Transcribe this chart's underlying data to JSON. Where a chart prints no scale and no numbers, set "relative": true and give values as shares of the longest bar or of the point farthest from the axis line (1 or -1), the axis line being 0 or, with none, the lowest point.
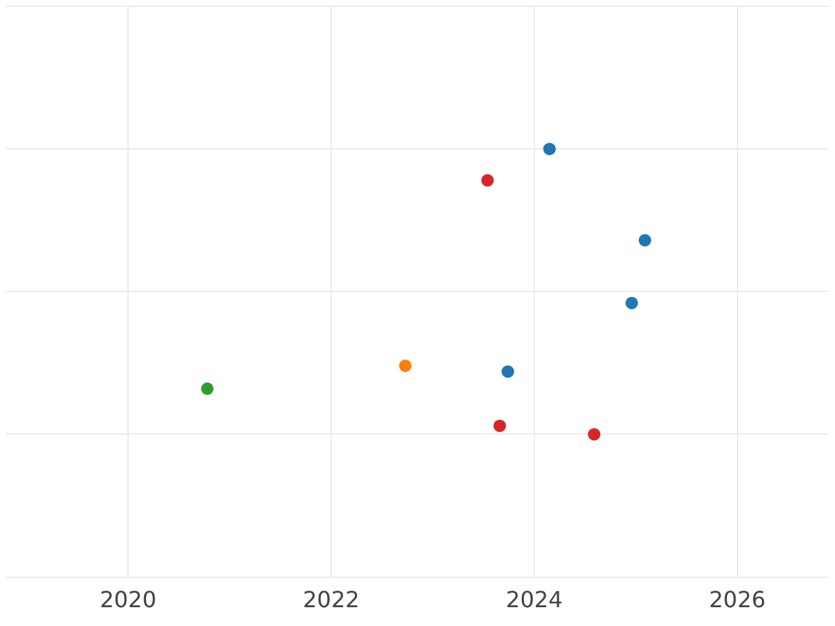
{
  "chart_data": {
    "type": "scatter",
    "relative": true,
    "grid": true,
    "marker": "circle",
    "xlim": [
      2018.8,
      2026.9
    ],
    "xticks": [
      2020,
      2022,
      2024,
      2026
    ],
    "series": [
      {
        "color": "#1f77b4",
        "x": [
          2024.15,
          2025.09,
          2024.96,
          2023.74
        ],
        "values": [
          1,
          0.68,
          0.46,
          0.22
        ]
      },
      {
        "color": "#d62728",
        "x": [
          2023.54,
          2023.66,
          2024.59
        ],
        "values": [
          0.89,
          0.03,
          0
        ]
      },
      {
        "color": "#ff7f0e",
        "x": [
          2022.73
        ],
        "values": [
          0.24
        ]
      },
      {
        "color": "#2ca02c",
        "x": [
          2020.78
        ],
        "values": [
          0.16
        ]
      }
    ]
  }
}
